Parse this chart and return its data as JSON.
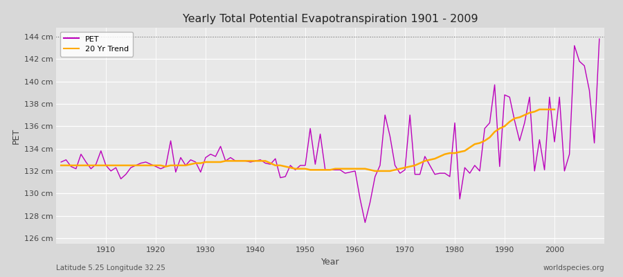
{
  "title": "Yearly Total Potential Evapotranspiration 1901 - 2009",
  "xlabel": "Year",
  "ylabel": "PET",
  "subtitle_left": "Latitude 5.25 Longitude 32.25",
  "subtitle_right": "worldspecies.org",
  "ylim": [
    125.5,
    144.8
  ],
  "ytick_labels": [
    "126 cm",
    "128 cm",
    "130 cm",
    "132 cm",
    "134 cm",
    "136 cm",
    "138 cm",
    "140 cm",
    "142 cm",
    "144 cm"
  ],
  "ytick_values": [
    126,
    128,
    130,
    132,
    134,
    136,
    138,
    140,
    142,
    144
  ],
  "xticks": [
    1910,
    1920,
    1930,
    1940,
    1950,
    1960,
    1970,
    1980,
    1990,
    2000
  ],
  "pet_color": "#bb00bb",
  "trend_color": "#ffaa00",
  "fig_bg_color": "#d8d8d8",
  "plot_bg_color": "#e8e8e8",
  "grid_color": "#ffffff",
  "legend_entries": [
    "PET",
    "20 Yr Trend"
  ],
  "years": [
    1901,
    1902,
    1903,
    1904,
    1905,
    1906,
    1907,
    1908,
    1909,
    1910,
    1911,
    1912,
    1913,
    1914,
    1915,
    1916,
    1917,
    1918,
    1919,
    1920,
    1921,
    1922,
    1923,
    1924,
    1925,
    1926,
    1927,
    1928,
    1929,
    1930,
    1931,
    1932,
    1933,
    1934,
    1935,
    1936,
    1937,
    1938,
    1939,
    1940,
    1941,
    1942,
    1943,
    1944,
    1945,
    1946,
    1947,
    1948,
    1949,
    1950,
    1951,
    1952,
    1953,
    1954,
    1955,
    1956,
    1957,
    1958,
    1959,
    1960,
    1961,
    1962,
    1963,
    1964,
    1965,
    1966,
    1967,
    1968,
    1969,
    1970,
    1971,
    1972,
    1973,
    1974,
    1975,
    1976,
    1977,
    1978,
    1979,
    1980,
    1981,
    1982,
    1983,
    1984,
    1985,
    1986,
    1987,
    1988,
    1989,
    1990,
    1991,
    1992,
    1993,
    1994,
    1995,
    1996,
    1997,
    1998,
    1999,
    2000,
    2001,
    2002,
    2003,
    2004,
    2005,
    2006,
    2007,
    2008,
    2009
  ],
  "pet_values": [
    132.8,
    133.0,
    132.4,
    132.2,
    133.5,
    132.8,
    132.2,
    132.6,
    133.8,
    132.5,
    132.0,
    132.3,
    131.3,
    131.7,
    132.3,
    132.5,
    132.7,
    132.8,
    132.6,
    132.4,
    132.2,
    132.4,
    134.7,
    131.9,
    133.2,
    132.5,
    133.0,
    132.8,
    131.9,
    133.2,
    133.5,
    133.3,
    134.2,
    132.9,
    133.2,
    132.9,
    132.9,
    132.9,
    132.8,
    132.9,
    133.0,
    132.7,
    132.6,
    133.1,
    131.4,
    131.5,
    132.5,
    132.1,
    132.5,
    132.5,
    135.8,
    132.6,
    135.3,
    132.1,
    132.1,
    132.1,
    132.1,
    131.8,
    131.9,
    132.0,
    129.5,
    127.4,
    129.2,
    131.5,
    132.5,
    137.0,
    135.1,
    132.5,
    131.8,
    132.1,
    137.0,
    131.7,
    131.7,
    133.3,
    132.5,
    131.7,
    131.8,
    131.8,
    131.5,
    136.3,
    129.5,
    132.3,
    131.8,
    132.5,
    132.0,
    135.8,
    136.3,
    139.7,
    132.4,
    138.8,
    138.6,
    136.5,
    134.7,
    136.3,
    138.6,
    132.0,
    134.8,
    132.1,
    138.6,
    134.6,
    138.6,
    132.0,
    133.5,
    143.2,
    141.8,
    141.4,
    139.2,
    134.5,
    143.8
  ],
  "trend_values": [
    132.5,
    132.5,
    132.5,
    132.5,
    132.5,
    132.5,
    132.5,
    132.5,
    132.5,
    132.5,
    132.5,
    132.5,
    132.5,
    132.5,
    132.5,
    132.5,
    132.5,
    132.5,
    132.5,
    132.5,
    132.5,
    132.4,
    132.5,
    132.5,
    132.5,
    132.5,
    132.6,
    132.7,
    132.7,
    132.8,
    132.8,
    132.8,
    132.8,
    132.9,
    132.9,
    132.9,
    132.9,
    132.9,
    132.9,
    132.9,
    132.9,
    132.9,
    132.7,
    132.5,
    132.5,
    132.4,
    132.3,
    132.2,
    132.2,
    132.2,
    132.1,
    132.1,
    132.1,
    132.1,
    132.1,
    132.2,
    132.2,
    132.2,
    132.2,
    132.2,
    132.2,
    132.2,
    132.1,
    132.0,
    132.0,
    132.0,
    132.0,
    132.1,
    132.2,
    132.3,
    132.4,
    132.5,
    132.7,
    132.9,
    133.0,
    133.1,
    133.3,
    133.5,
    133.6,
    133.6,
    133.7,
    133.8,
    134.1,
    134.4,
    134.5,
    134.7,
    135.0,
    135.5,
    135.8,
    136.0,
    136.4,
    136.7,
    136.8,
    137.0,
    137.2,
    137.3,
    137.5,
    137.5,
    137.5,
    137.5,
    null,
    null,
    null,
    null,
    null,
    null,
    null,
    null,
    null
  ]
}
